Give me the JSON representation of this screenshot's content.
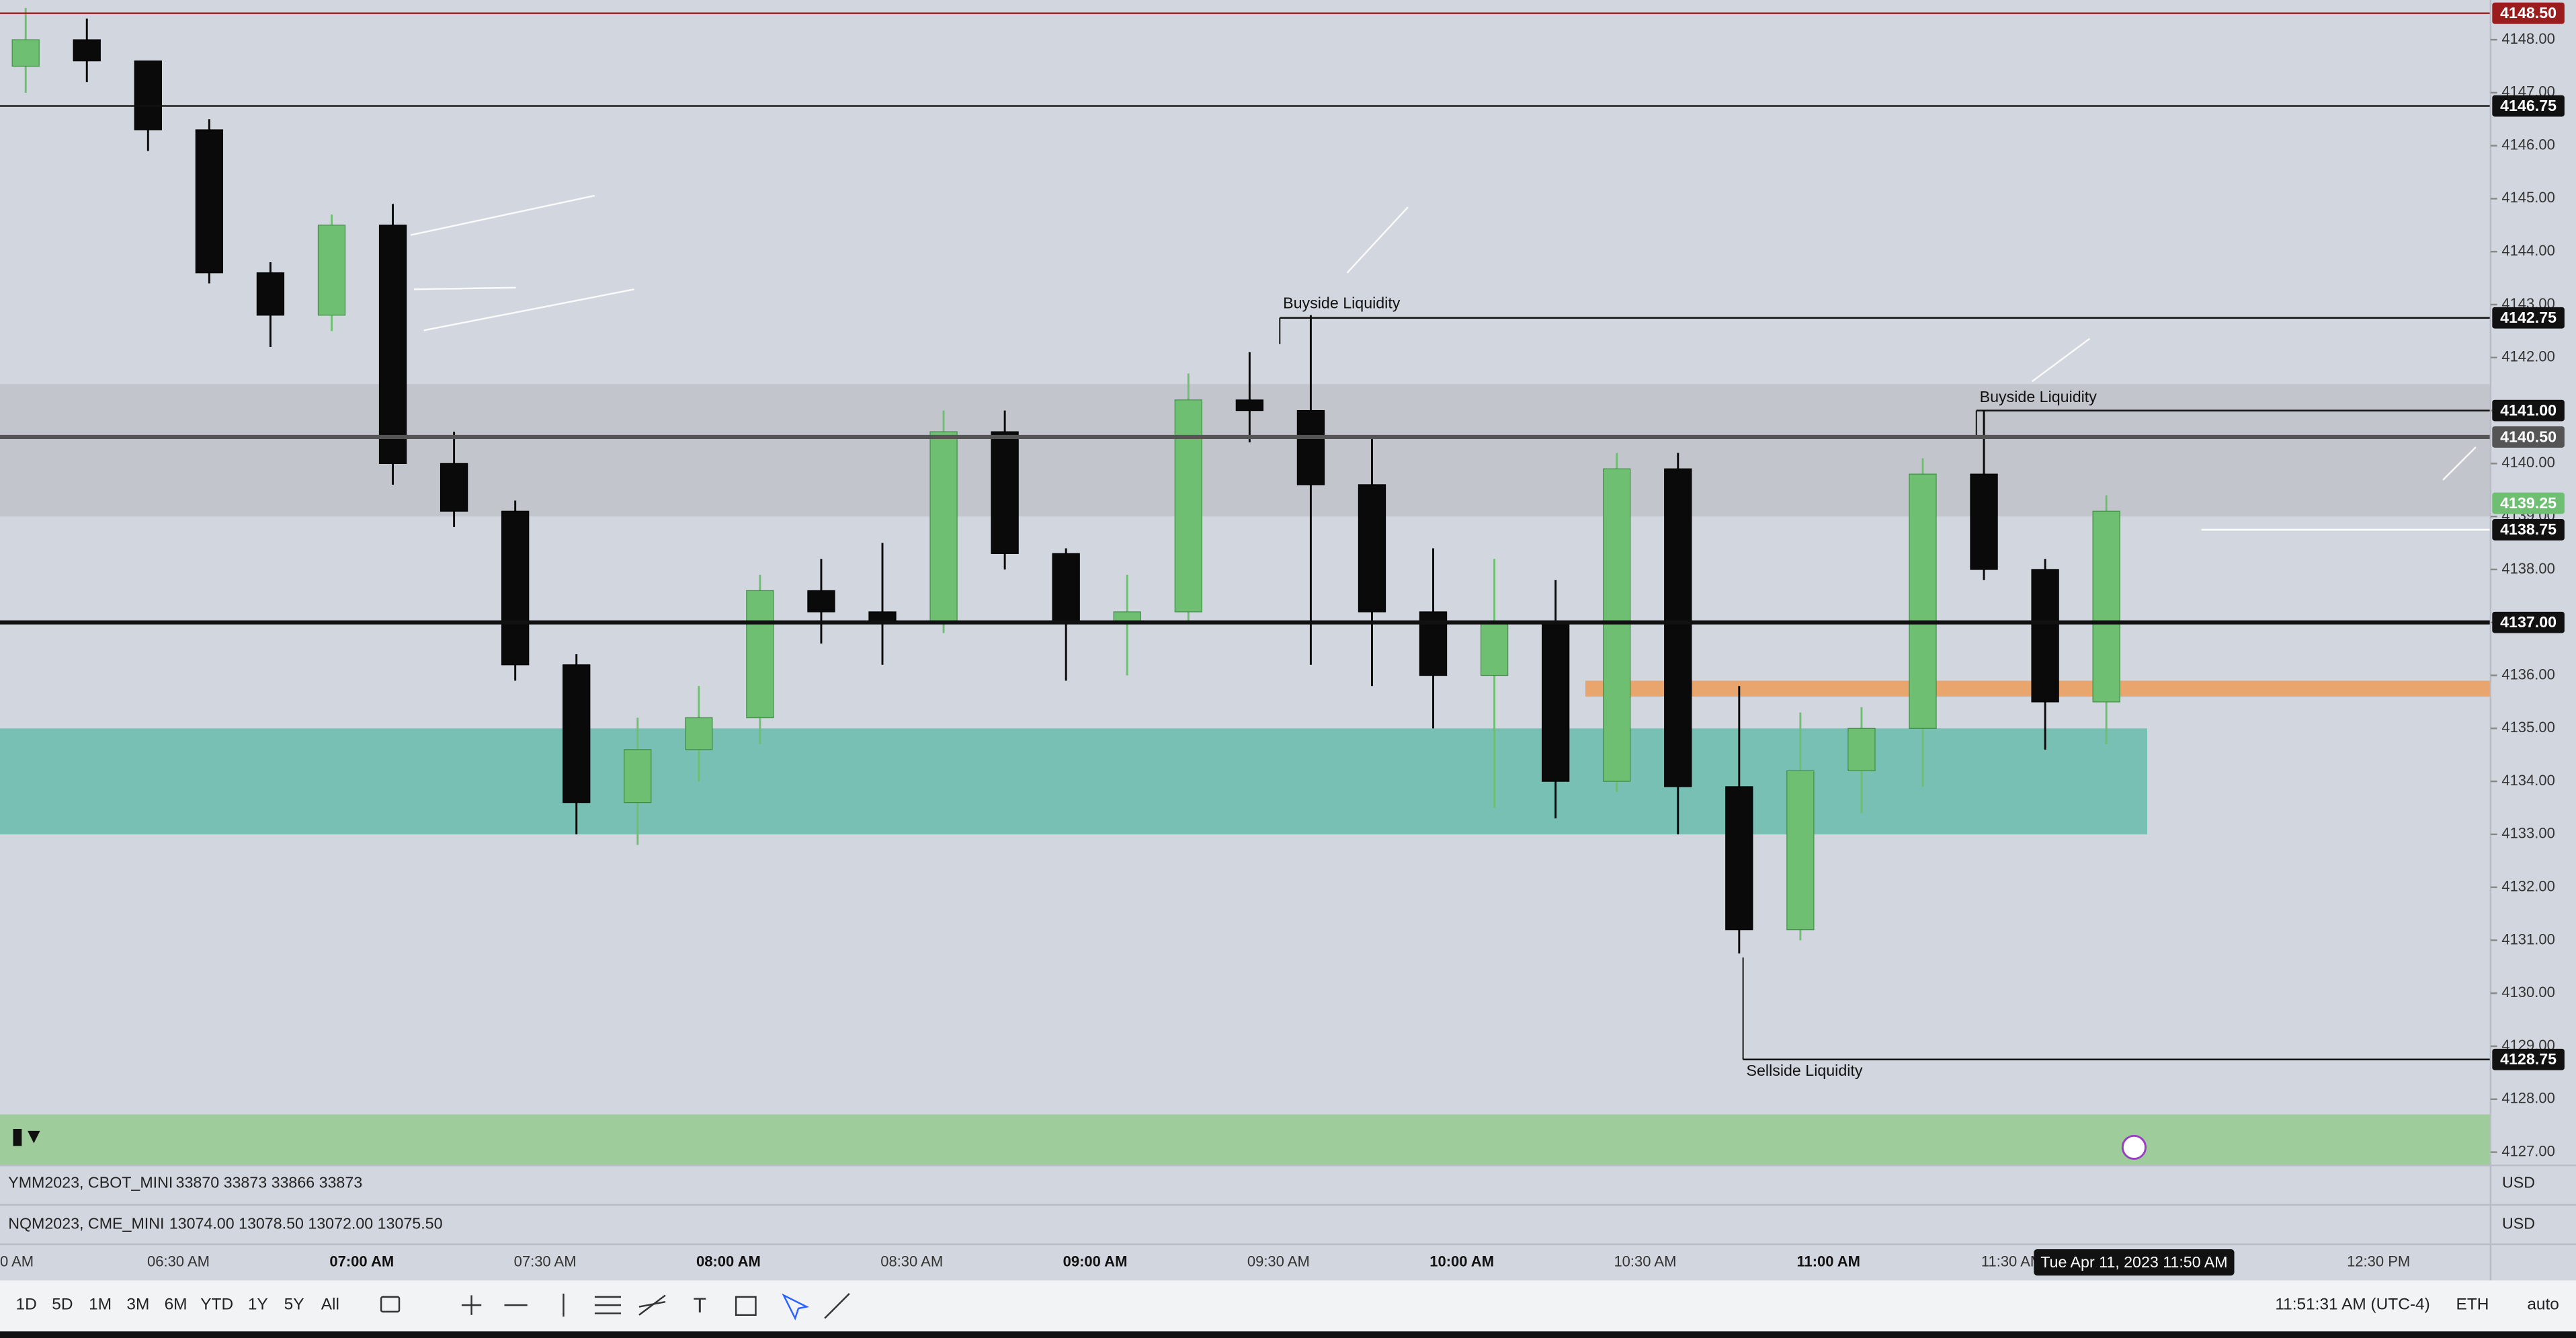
{
  "chart_data": {
    "type": "candlestick",
    "open": [
      4147.5,
      4148.0,
      4147.6,
      4146.3,
      4143.6,
      4142.8,
      4144.5,
      4140.0,
      4139.1,
      4136.2,
      4133.6,
      4134.6,
      4135.2,
      4137.6,
      4137.2,
      4137.0,
      4140.6,
      4138.3,
      4137.0,
      4137.2,
      4141.2,
      4141.0,
      4139.6,
      4137.2,
      4136.0,
      4137.0,
      4134.0,
      4139.9,
      4133.9,
      4131.2,
      4134.2,
      4135.0,
      4139.8,
      4138.0,
      4135.5
    ],
    "high": [
      4148.6,
      4148.4,
      4147.6,
      4146.5,
      4143.8,
      4144.7,
      4144.9,
      4140.6,
      4139.3,
      4136.4,
      4135.2,
      4135.8,
      4137.9,
      4138.2,
      4138.5,
      4141.0,
      4141.0,
      4138.4,
      4137.9,
      4141.7,
      4142.1,
      4142.8,
      4140.5,
      4138.4,
      4138.2,
      4137.8,
      4140.2,
      4140.2,
      4135.8,
      4135.3,
      4135.4,
      4140.1,
      4141.0,
      4138.2,
      4139.4
    ],
    "low": [
      4147.0,
      4147.2,
      4145.9,
      4143.4,
      4142.2,
      4142.5,
      4139.6,
      4138.8,
      4135.9,
      4133.0,
      4132.8,
      4134.0,
      4134.7,
      4136.6,
      4136.2,
      4136.8,
      4138.0,
      4135.9,
      4136.0,
      4137.0,
      4140.4,
      4136.2,
      4135.8,
      4135.0,
      4133.5,
      4133.3,
      4133.8,
      4133.0,
      4130.75,
      4131.0,
      4133.4,
      4133.9,
      4137.8,
      4134.6,
      4134.7
    ],
    "close": [
      4148.0,
      4147.6,
      4146.3,
      4143.6,
      4142.8,
      4144.5,
      4140.0,
      4139.1,
      4136.2,
      4133.6,
      4134.6,
      4135.2,
      4137.6,
      4137.2,
      4137.0,
      4140.6,
      4138.3,
      4137.0,
      4137.2,
      4141.2,
      4141.0,
      4139.6,
      4137.2,
      4136.0,
      4137.0,
      4134.0,
      4139.9,
      4133.9,
      4131.2,
      4134.2,
      4135.0,
      4139.8,
      4138.0,
      4135.5,
      4139.1
    ],
    "up_color": "#6fbf73",
    "down_color": "#0a0a0a",
    "ylim": [
      4126.75,
      4148.75
    ],
    "yticks": [
      {
        "value": 4148,
        "label": "4148.00"
      },
      {
        "value": 4147,
        "label": "4147.00"
      },
      {
        "value": 4146,
        "label": "4146.00"
      },
      {
        "value": 4145,
        "label": "4145.00"
      },
      {
        "value": 4144,
        "label": "4144.00"
      },
      {
        "value": 4143,
        "label": "4143.00"
      },
      {
        "value": 4142,
        "label": "4142.00"
      },
      {
        "value": 4141,
        "label": "4141.00"
      },
      {
        "value": 4140,
        "label": "4140.00"
      },
      {
        "value": 4139,
        "label": "4139.00"
      },
      {
        "value": 4138,
        "label": "4138.00"
      },
      {
        "value": 4137,
        "label": "4137.00"
      },
      {
        "value": 4136,
        "label": "4136.00"
      },
      {
        "value": 4135,
        "label": "4135.00"
      },
      {
        "value": 4134,
        "label": "4134.00"
      },
      {
        "value": 4133,
        "label": "4133.00"
      },
      {
        "value": 4132,
        "label": "4132.00"
      },
      {
        "value": 4131,
        "label": "4131.00"
      },
      {
        "value": 4130,
        "label": "4130.00"
      },
      {
        "value": 4129,
        "label": "4129.00"
      },
      {
        "value": 4128,
        "label": "4128.00"
      },
      {
        "value": 4127,
        "label": "4127.00"
      }
    ],
    "grid": false,
    "x_labels": [
      "0 AM",
      "06:30 AM",
      "07:00 AM",
      "07:30 AM",
      "08:00 AM",
      "08:30 AM",
      "09:00 AM",
      "09:30 AM",
      "10:00 AM",
      "10:30 AM",
      "11:00 AM",
      "11:30 AM",
      null,
      "12:30 PM"
    ],
    "levels": [
      {
        "value": 4148.5,
        "label": "4148.50",
        "color": "#9b1c1c"
      },
      {
        "value": 4146.75,
        "label": "4146.75",
        "color": "#111111"
      },
      {
        "value": 4142.75,
        "label": "4142.75",
        "color": "#111111"
      },
      {
        "value": 4141,
        "label": "4141.00",
        "color": "#111111"
      },
      {
        "value": 4140.5,
        "label": "4140.50",
        "color": "#555555"
      },
      {
        "value": 4139.25,
        "label": "4139.25",
        "color": "#6fbf73"
      },
      {
        "value": 4138.75,
        "label": "4138.75",
        "color": "#111111"
      },
      {
        "value": 4137,
        "label": "4137.00",
        "color": "#111111"
      },
      {
        "value": 4128.75,
        "label": "4128.75",
        "color": "#111111"
      }
    ],
    "zones": [
      {
        "from": 4139.0,
        "to": 4141.5,
        "color": "#c3c5cc"
      },
      {
        "from": 4133.0,
        "to": 4135.0,
        "color": "#78bfb4"
      },
      {
        "from": 4135.6,
        "to": 4135.9,
        "color": "#e9a56e"
      }
    ],
    "annotations": [
      "Buyside Liquidity",
      "Buyside Liquidity",
      "Sellside Liquidity"
    ],
    "crosshair_label": "Tue Apr 11, 2023   11:50 AM"
  },
  "panels": [
    {
      "symbol": "YMM2023, CBOT_MINI",
      "quote": "33870  33873  33866  33873",
      "currency": "USD"
    },
    {
      "symbol": "NQM2023, CME_MINI",
      "quote": "13074.00  13078.50  13072.00  13075.50",
      "currency": "USD"
    }
  ],
  "toolbar": {
    "ranges": [
      "1D",
      "5D",
      "1M",
      "3M",
      "6M",
      "YTD",
      "1Y",
      "5Y",
      "All"
    ],
    "clock": "11:51:31 AM (UTC-4)",
    "session": "ETH",
    "scale": "auto"
  }
}
